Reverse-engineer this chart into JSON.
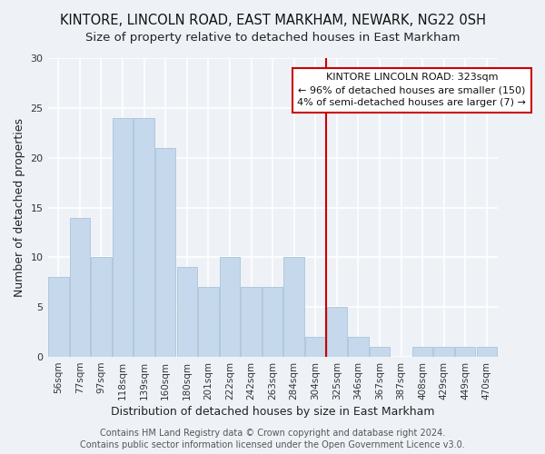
{
  "title1": "KINTORE, LINCOLN ROAD, EAST MARKHAM, NEWARK, NG22 0SH",
  "title2": "Size of property relative to detached houses in East Markham",
  "xlabel": "Distribution of detached houses by size in East Markham",
  "ylabel": "Number of detached properties",
  "categories": [
    "56sqm",
    "77sqm",
    "97sqm",
    "118sqm",
    "139sqm",
    "160sqm",
    "180sqm",
    "201sqm",
    "222sqm",
    "242sqm",
    "263sqm",
    "284sqm",
    "304sqm",
    "325sqm",
    "346sqm",
    "367sqm",
    "387sqm",
    "408sqm",
    "429sqm",
    "449sqm",
    "470sqm"
  ],
  "values": [
    8,
    14,
    10,
    24,
    24,
    21,
    9,
    7,
    10,
    7,
    7,
    10,
    2,
    5,
    2,
    1,
    0,
    1,
    1,
    1,
    1
  ],
  "bar_color": "#c5d8ec",
  "bar_edge_color": "#a8c4dc",
  "vline_x_index": 13,
  "vline_color": "#cc0000",
  "annotation_title": "KINTORE LINCOLN ROAD: 323sqm",
  "annotation_line1": "← 96% of detached houses are smaller (150)",
  "annotation_line2": "4% of semi-detached houses are larger (7) →",
  "annotation_box_color": "#ffffff",
  "annotation_box_edge_color": "#cc0000",
  "footer1": "Contains HM Land Registry data © Crown copyright and database right 2024.",
  "footer2": "Contains public sector information licensed under the Open Government Licence v3.0.",
  "ylim": [
    0,
    30
  ],
  "yticks": [
    0,
    5,
    10,
    15,
    20,
    25,
    30
  ],
  "background_color": "#eef2f7",
  "grid_color": "#ffffff",
  "title_fontsize": 10.5,
  "subtitle_fontsize": 9.5,
  "axis_label_fontsize": 9,
  "tick_fontsize": 7.5,
  "footer_fontsize": 7
}
